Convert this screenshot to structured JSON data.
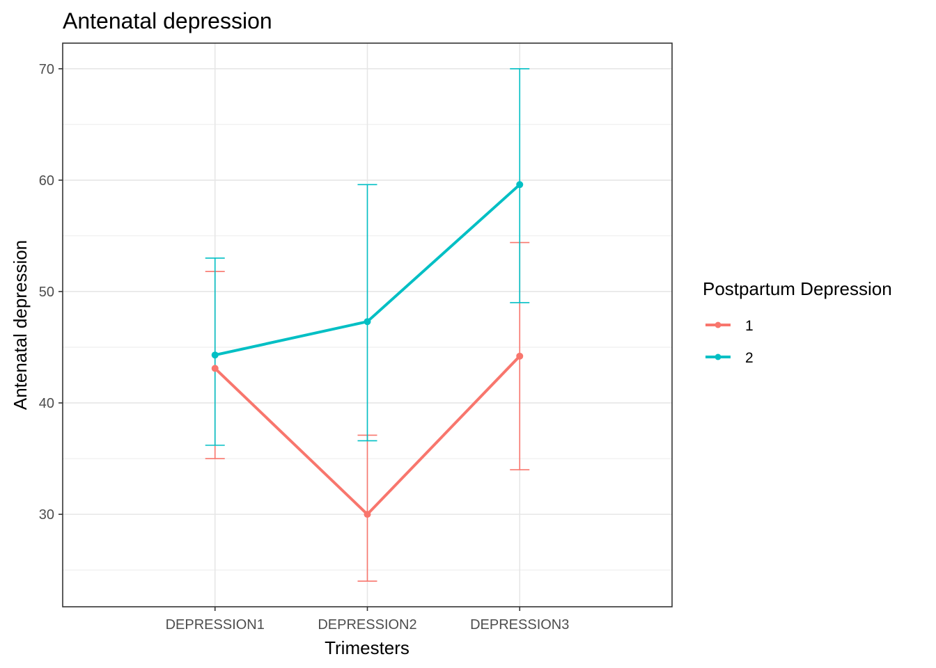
{
  "chart_data": {
    "type": "line",
    "title": "Antenatal depression",
    "xlabel": "Trimesters",
    "ylabel": "Antenatal depression",
    "categories": [
      "DEPRESSION1",
      "DEPRESSION2",
      "DEPRESSION3"
    ],
    "ylim": [
      21.7,
      72.3
    ],
    "yticks": [
      30,
      40,
      50,
      60,
      70
    ],
    "grid": true,
    "legend": {
      "title": "Postpartum Depression",
      "position": "right"
    },
    "series": [
      {
        "name": "1",
        "color": "#F8766D",
        "values": [
          43.1,
          30.0,
          44.2
        ],
        "lower": [
          35.0,
          24.0,
          34.0
        ],
        "upper": [
          51.8,
          37.1,
          54.4
        ]
      },
      {
        "name": "2",
        "color": "#00BFC4",
        "values": [
          44.3,
          47.3,
          59.6
        ],
        "lower": [
          36.2,
          36.6,
          49.0
        ],
        "upper": [
          53.0,
          59.6,
          70.0
        ]
      }
    ]
  }
}
